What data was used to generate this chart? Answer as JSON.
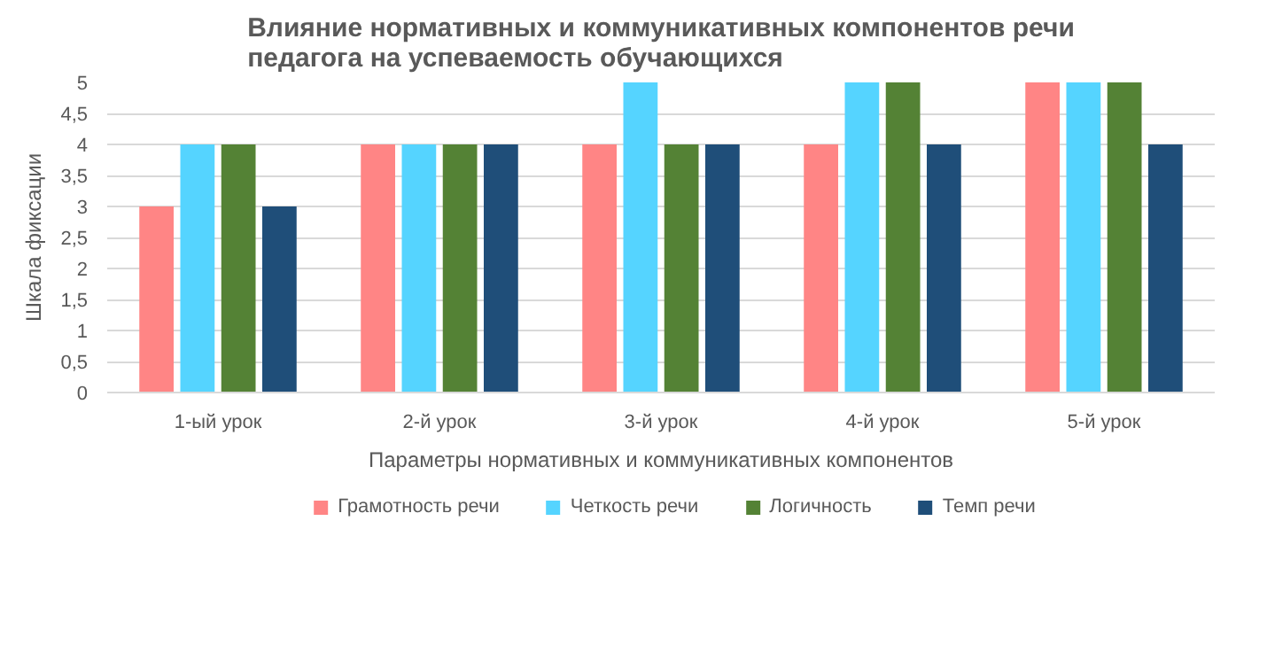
{
  "chart_data": {
    "type": "bar",
    "title": "Влияние нормативных и коммуникативных компонентов речи педагога на успеваемость обучающихся",
    "xlabel": "Параметры нормативных и коммуникативных компонентов",
    "ylabel": "Шкала фиксации",
    "categories": [
      "1-ый урок",
      "2-й урок",
      "3-й урок",
      "4-й урок",
      "5-й урок"
    ],
    "series": [
      {
        "name": "Грамотность речи",
        "color": "#ff8585",
        "values": [
          3,
          4,
          4,
          4,
          5
        ]
      },
      {
        "name": "Четкость речи",
        "color": "#55d4ff",
        "values": [
          4,
          4,
          5,
          5,
          5
        ]
      },
      {
        "name": "Логичность",
        "color": "#548235",
        "values": [
          4,
          4,
          4,
          5,
          5
        ]
      },
      {
        "name": "Темп речи",
        "color": "#1f4e79",
        "values": [
          3,
          4,
          4,
          4,
          4
        ]
      }
    ],
    "ylim": [
      0,
      5
    ],
    "yticks": [
      0,
      {
        "value": 0.5,
        "label": "0,5"
      },
      1,
      {
        "value": 1.5,
        "label": "1,5"
      },
      2,
      {
        "value": 2.5,
        "label": "2,5"
      },
      3,
      {
        "value": 3.5,
        "label": "3,5"
      },
      4,
      {
        "value": 4.5,
        "label": "4,5"
      },
      5
    ],
    "grid": "y",
    "legend": "bottom"
  }
}
